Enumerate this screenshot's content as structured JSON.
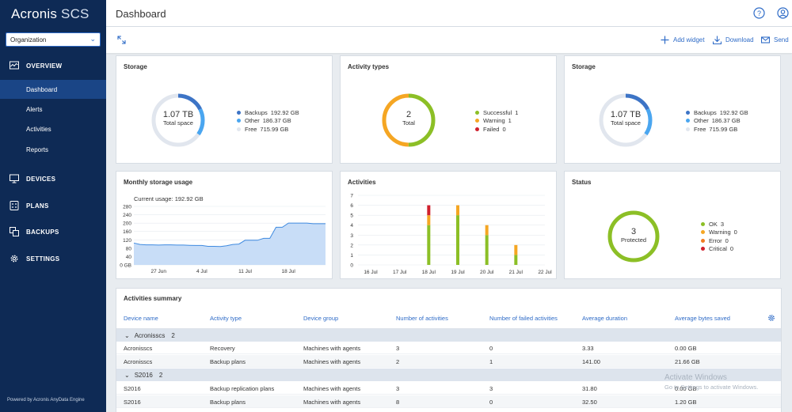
{
  "sidebar": {
    "brand": "Acronis",
    "brand_suffix": "SCS",
    "org_select": "Organization",
    "sections": {
      "overview": "OVERVIEW",
      "devices": "DEVICES",
      "plans": "PLANS",
      "backups": "BACKUPS",
      "settings": "SETTINGS"
    },
    "overview_items": {
      "dashboard": "Dashboard",
      "alerts": "Alerts",
      "activities": "Activities",
      "reports": "Reports"
    },
    "powered_by": "Powered by Acronis AnyData Engine"
  },
  "header": {
    "title": "Dashboard"
  },
  "toolbar": {
    "add_widget": "Add widget",
    "download": "Download",
    "send": "Send"
  },
  "storage1": {
    "title": "Storage",
    "center_value": "1.07 TB",
    "center_label": "Total space",
    "legend": [
      {
        "label": "Backups",
        "value": "192.92 GB",
        "color": "#3d74c6"
      },
      {
        "label": "Other",
        "value": "186.37 GB",
        "color": "#4aa6f0"
      },
      {
        "label": "Free",
        "value": "715.99 GB",
        "color": "#e1e6ee"
      }
    ]
  },
  "activity_types": {
    "title": "Activity types",
    "center_value": "2",
    "center_label": "Total",
    "legend": [
      {
        "label": "Successful",
        "value": "1",
        "color": "#8cbf26"
      },
      {
        "label": "Warning",
        "value": "1",
        "color": "#f5a623"
      },
      {
        "label": "Failed",
        "value": "0",
        "color": "#d0202d"
      }
    ]
  },
  "storage2": {
    "title": "Storage",
    "center_value": "1.07 TB",
    "center_label": "Total space",
    "legend": [
      {
        "label": "Backups",
        "value": "192.92 GB",
        "color": "#3d74c6"
      },
      {
        "label": "Other",
        "value": "186.37 GB",
        "color": "#4aa6f0"
      },
      {
        "label": "Free",
        "value": "715.99 GB",
        "color": "#e1e6ee"
      }
    ]
  },
  "monthly": {
    "title": "Monthly storage usage",
    "current_usage_label": "Current usage:",
    "current_usage_value": "192.92 GB"
  },
  "activities_chart": {
    "title": "Activities"
  },
  "status": {
    "title": "Status",
    "center_value": "3",
    "center_label": "Protected",
    "legend": [
      {
        "label": "OK",
        "value": "3",
        "color": "#8cbf26"
      },
      {
        "label": "Warning",
        "value": "0",
        "color": "#f5a623"
      },
      {
        "label": "Error",
        "value": "0",
        "color": "#f07c22"
      },
      {
        "label": "Critical",
        "value": "0",
        "color": "#d0202d"
      }
    ]
  },
  "chart_data": [
    {
      "type": "area",
      "chart": "monthly-storage",
      "x_ticks": [
        "27 Jun",
        "4 Jul",
        "11 Jul",
        "18 Jul"
      ],
      "y_ticks": [
        "0 GB",
        "40",
        "80",
        "120",
        "160",
        "200",
        "240",
        "280"
      ],
      "ylim": [
        0,
        280
      ],
      "x": [
        0,
        1,
        2,
        3,
        4,
        5,
        6,
        7,
        8,
        9,
        10,
        11,
        12,
        13,
        14,
        15,
        16,
        17,
        18,
        19,
        20,
        21,
        22,
        23,
        24,
        25,
        26,
        27,
        28,
        29,
        30,
        31
      ],
      "values": [
        105,
        98,
        96,
        96,
        95,
        96,
        96,
        95,
        95,
        94,
        93,
        93,
        89,
        89,
        88,
        92,
        98,
        100,
        118,
        118,
        118,
        127,
        127,
        180,
        180,
        200,
        200,
        200,
        200,
        197,
        197,
        197
      ],
      "color": "#3f8ae0",
      "fill": "#c8ddf7",
      "grid": true
    },
    {
      "type": "bar",
      "chart": "activities",
      "stacked": true,
      "categories": [
        "16 Jul",
        "17 Jul",
        "18 Jul",
        "19 Jul",
        "20 Jul",
        "21 Jul",
        "22 Jul"
      ],
      "y_ticks": [
        "0",
        "1",
        "2",
        "3",
        "4",
        "5",
        "6",
        "7"
      ],
      "ylim": [
        0,
        7
      ],
      "series": [
        {
          "values": [
            0,
            0,
            4,
            5,
            3,
            1,
            0
          ],
          "color": "#8cbf26"
        },
        {
          "values": [
            0,
            0,
            1,
            1,
            1,
            1,
            0
          ],
          "color": "#f5a623"
        },
        {
          "values": [
            0,
            0,
            1,
            0,
            0,
            0,
            0
          ],
          "color": "#d0202d"
        }
      ],
      "grid": true
    }
  ],
  "summary": {
    "title": "Activities summary",
    "columns": [
      "Device name",
      "Activity type",
      "Device group",
      "Number of activities",
      "Number of failed activities",
      "Average duration",
      "Average bytes saved"
    ],
    "groups": [
      {
        "name": "Acronisscs",
        "count": "2",
        "rows": [
          [
            "Acronisscs",
            "Recovery",
            "Machines with agents",
            "3",
            "0",
            "3.33",
            "0.00 GB"
          ],
          [
            "Acronisscs",
            "Backup plans",
            "Machines with agents",
            "2",
            "1",
            "141.00",
            "21.66 GB"
          ]
        ]
      },
      {
        "name": "S2016",
        "count": "2",
        "rows": [
          [
            "S2016",
            "Backup replication plans",
            "Machines with agents",
            "3",
            "3",
            "31.80",
            "0.00 GB"
          ],
          [
            "S2016",
            "Backup plans",
            "Machines with agents",
            "8",
            "0",
            "32.50",
            "1.20 GB"
          ]
        ]
      }
    ]
  },
  "watermark": {
    "line1": "Activate Windows",
    "line2": "Go to Settings to activate Windows."
  }
}
